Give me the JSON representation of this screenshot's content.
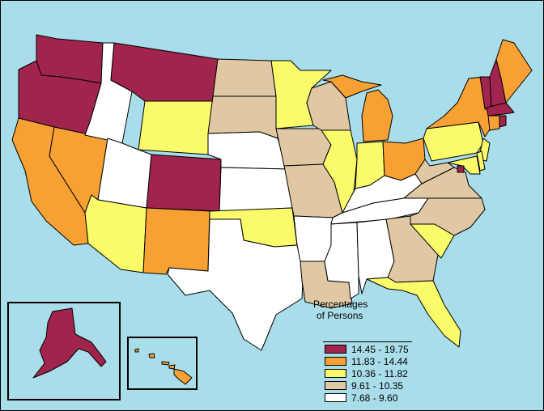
{
  "colors": {
    "ocean": "#a8dde9",
    "class_1": "#a0244b",
    "class_2": "#f7a135",
    "class_3": "#fafa6a",
    "class_4": "#dfc8a3",
    "class_5": "#ffffff"
  },
  "legend": {
    "title_line1": "Percentages",
    "title_line2": "of Persons",
    "classes": [
      {
        "label": "14.45 - 19.75",
        "color": "#a0244b"
      },
      {
        "label": "11.83 - 14.44",
        "color": "#f7a135"
      },
      {
        "label": "10.36 - 11.82",
        "color": "#fafa6a"
      },
      {
        "label": "9.61 - 10.35",
        "color": "#dfc8a3"
      },
      {
        "label": "7.68 - 9.60",
        "color": "#ffffff"
      }
    ]
  },
  "states": [
    {
      "name": "Washington",
      "class": 1
    },
    {
      "name": "Oregon",
      "class": 1
    },
    {
      "name": "California",
      "class": 2
    },
    {
      "name": "Nevada",
      "class": 2
    },
    {
      "name": "Idaho",
      "class": 5
    },
    {
      "name": "Montana",
      "class": 1
    },
    {
      "name": "Wyoming",
      "class": 3
    },
    {
      "name": "Utah",
      "class": 5
    },
    {
      "name": "Arizona",
      "class": 3
    },
    {
      "name": "Colorado",
      "class": 1
    },
    {
      "name": "New Mexico",
      "class": 2
    },
    {
      "name": "North Dakota",
      "class": 4
    },
    {
      "name": "South Dakota",
      "class": 4
    },
    {
      "name": "Nebraska",
      "class": 5
    },
    {
      "name": "Kansas",
      "class": 5
    },
    {
      "name": "Oklahoma",
      "class": 3
    },
    {
      "name": "Texas",
      "class": 5
    },
    {
      "name": "Minnesota",
      "class": 3
    },
    {
      "name": "Iowa",
      "class": 4
    },
    {
      "name": "Missouri",
      "class": 4
    },
    {
      "name": "Arkansas",
      "class": 5
    },
    {
      "name": "Louisiana",
      "class": 4
    },
    {
      "name": "Wisconsin",
      "class": 4
    },
    {
      "name": "Illinois",
      "class": 3
    },
    {
      "name": "Michigan",
      "class": 2
    },
    {
      "name": "Indiana",
      "class": 3
    },
    {
      "name": "Ohio",
      "class": 2
    },
    {
      "name": "Kentucky",
      "class": 5
    },
    {
      "name": "Tennessee",
      "class": 5
    },
    {
      "name": "Mississippi",
      "class": 5
    },
    {
      "name": "Alabama",
      "class": 5
    },
    {
      "name": "Georgia",
      "class": 4
    },
    {
      "name": "Florida",
      "class": 3
    },
    {
      "name": "South Carolina",
      "class": 3
    },
    {
      "name": "North Carolina",
      "class": 4
    },
    {
      "name": "Virginia",
      "class": 4
    },
    {
      "name": "West Virginia",
      "class": 4
    },
    {
      "name": "Pennsylvania",
      "class": 3
    },
    {
      "name": "New York",
      "class": 2
    },
    {
      "name": "New Jersey",
      "class": 3
    },
    {
      "name": "Delaware",
      "class": 3
    },
    {
      "name": "Maryland",
      "class": 3
    },
    {
      "name": "District of Columbia",
      "class": 1
    },
    {
      "name": "Connecticut",
      "class": 2
    },
    {
      "name": "Rhode Island",
      "class": 1
    },
    {
      "name": "Massachusetts",
      "class": 1
    },
    {
      "name": "Vermont",
      "class": 1
    },
    {
      "name": "New Hampshire",
      "class": 1
    },
    {
      "name": "Maine",
      "class": 2
    },
    {
      "name": "Alaska",
      "class": 1
    },
    {
      "name": "Hawaii",
      "class": 2
    }
  ]
}
